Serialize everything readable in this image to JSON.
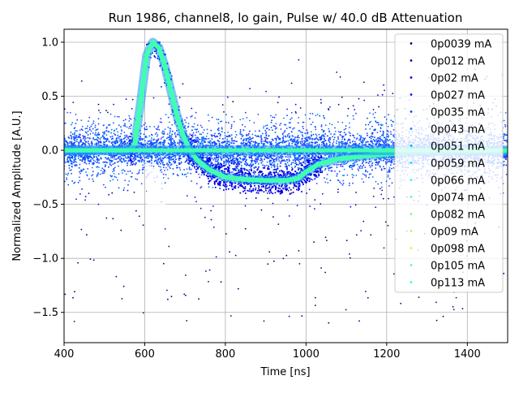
{
  "chart_data": {
    "type": "scatter",
    "title": "Run 1986, channel8, lo gain, Pulse w/ 40.0 dB Attenuation",
    "xlabel": "Time [ns]",
    "ylabel": "Normalized Amplitude [A.U.]",
    "xlim": [
      400,
      1500
    ],
    "ylim": [
      -1.78,
      1.12
    ],
    "xticks": [
      400,
      600,
      800,
      1000,
      1200,
      1400
    ],
    "yticks": [
      -1.5,
      -1.0,
      -0.5,
      0.0,
      0.5,
      1.0
    ],
    "xtick_labels": [
      "400",
      "600",
      "800",
      "1000",
      "1200",
      "1400"
    ],
    "ytick_labels": [
      "−1.5",
      "−1.0",
      "−0.5",
      "0.0",
      "0.5",
      "1.0"
    ],
    "grid": true,
    "legend_position": "upper-right",
    "series": [
      {
        "name": "0p0039 mA",
        "color": "#00007f"
      },
      {
        "name": "0p012 mA",
        "color": "#0000b2"
      },
      {
        "name": "0p02 mA",
        "color": "#0000e5"
      },
      {
        "name": "0p027 mA",
        "color": "#0010ff"
      },
      {
        "name": "0p035 mA",
        "color": "#0044ff"
      },
      {
        "name": "0p043 mA",
        "color": "#0078ff"
      },
      {
        "name": "0p051 mA",
        "color": "#00acff"
      },
      {
        "name": "0p059 mA",
        "color": "#00e0fb"
      },
      {
        "name": "0p066 mA",
        "color": "#29ffce"
      },
      {
        "name": "0p074 mA",
        "color": "#53ffa4"
      },
      {
        "name": "0p082 mA",
        "color": "#7bff7b"
      },
      {
        "name": "0p09 mA",
        "color": "#a4ff53"
      },
      {
        "name": "0p098 mA",
        "color": "#ceff29"
      },
      {
        "name": "0p105 mA",
        "color": "#53ffa4"
      },
      {
        "name": "0p113 mA",
        "color": "#29ffce"
      }
    ],
    "average_pulse": {
      "x": [
        400,
        560,
        575,
        590,
        605,
        620,
        635,
        650,
        665,
        680,
        695,
        710,
        730,
        760,
        800,
        850,
        900,
        950,
        980,
        1000,
        1030,
        1080,
        1150,
        1250,
        1350,
        1500
      ],
      "y": [
        0.0,
        0.0,
        0.05,
        0.45,
        0.88,
        1.0,
        0.95,
        0.78,
        0.55,
        0.32,
        0.14,
        0.01,
        -0.09,
        -0.18,
        -0.25,
        -0.27,
        -0.28,
        -0.28,
        -0.26,
        -0.2,
        -0.13,
        -0.08,
        -0.05,
        -0.02,
        -0.01,
        -0.01
      ]
    },
    "baseline": {
      "x": [
        400,
        1500
      ],
      "y": [
        0.0,
        0.0
      ]
    },
    "noise_band": {
      "y_min": -0.5,
      "y_max": 0.55
    }
  }
}
